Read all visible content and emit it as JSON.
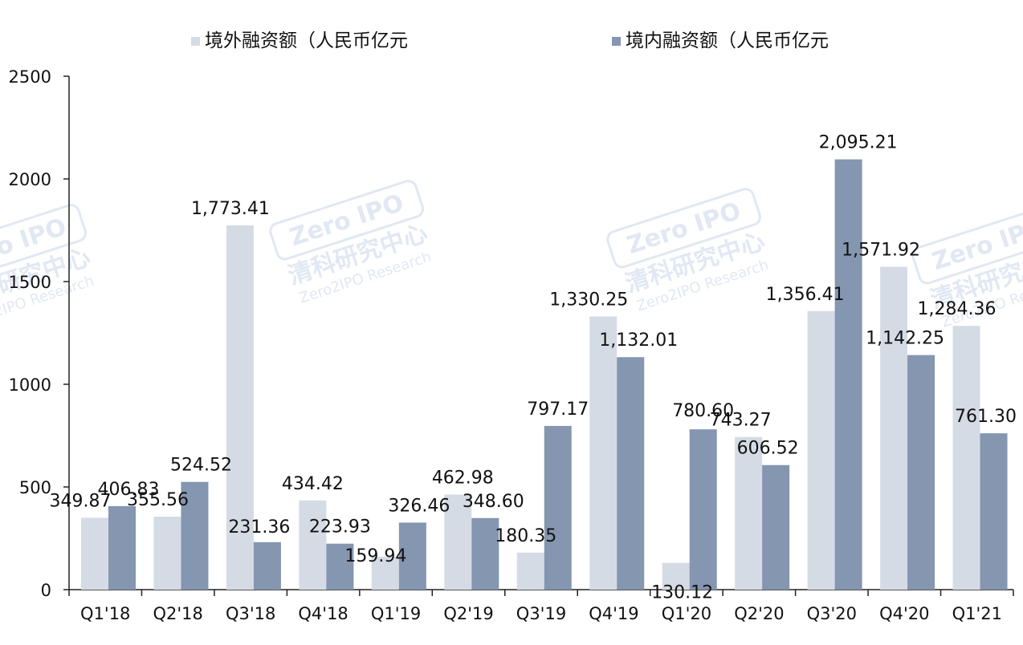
{
  "chart_data": {
    "type": "bar",
    "categories": [
      "Q1'18",
      "Q2'18",
      "Q3'18",
      "Q4'18",
      "Q1'19",
      "Q2'19",
      "Q3'19",
      "Q4'19",
      "Q1'20",
      "Q2'20",
      "Q3'20",
      "Q4'20",
      "Q1'21"
    ],
    "series": [
      {
        "name": "境外融资额（人民币亿元",
        "color": "#d5dbe5",
        "values": [
          349.87,
          355.56,
          1773.41,
          434.42,
          159.94,
          462.98,
          180.35,
          1330.25,
          130.12,
          743.27,
          1356.41,
          1571.92,
          1284.36
        ],
        "labels": [
          "349.87",
          "355.56",
          "1,773.41",
          "434.42",
          "159.94",
          "462.98",
          "180.35",
          "1,330.25",
          "130.12",
          "743.27",
          "1,356.41",
          "1,571.92",
          "1,284.36"
        ]
      },
      {
        "name": "境内融资额（人民币亿元",
        "color": "#8496b0",
        "values": [
          406.83,
          524.52,
          231.36,
          223.93,
          326.46,
          348.6,
          797.17,
          1132.01,
          780.6,
          606.52,
          2095.21,
          1142.25,
          761.3
        ],
        "labels": [
          "406.83",
          "524.52",
          "231.36",
          "223.93",
          "326.46",
          "348.60",
          "797.17",
          "1,132.01",
          "780.60",
          "606.52",
          "2,095.21",
          "1,142.25",
          "761.30"
        ]
      }
    ],
    "yticks": [
      "0",
      "500",
      "1000",
      "1500",
      "2000",
      "2500"
    ],
    "ylim": [
      0,
      2500
    ],
    "legend_position": "top",
    "grid": false
  },
  "watermark": {
    "logo_text": "Zero IPO",
    "cn_text": "清科研究中心",
    "en_text": "Zero2IPO Research"
  }
}
